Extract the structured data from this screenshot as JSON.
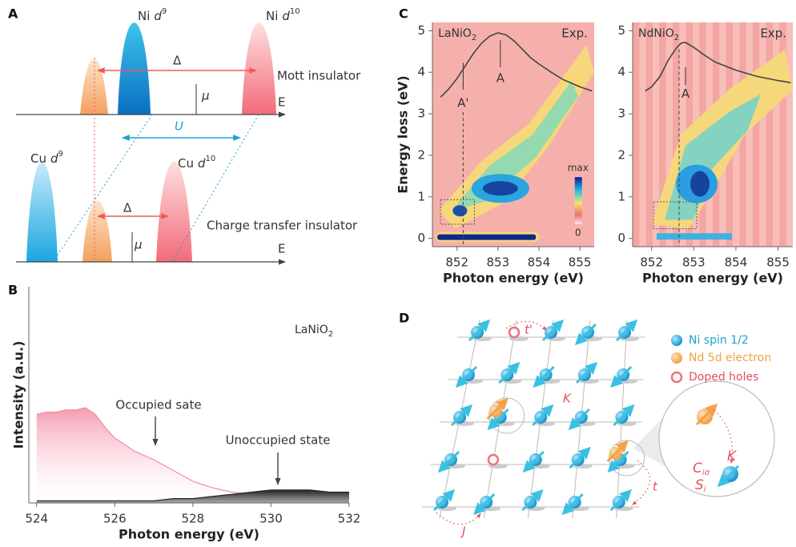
{
  "panel_a": {
    "label": "A",
    "ni_d9": {
      "name": "Ni",
      "orbital": "d",
      "exponent": "9"
    },
    "ni_d10": {
      "name": "Ni",
      "orbital": "d",
      "exponent": "10"
    },
    "delta_top": "Δ",
    "mott": "Mott insulator",
    "mu_top": "μ",
    "e_top": "E",
    "u": "U",
    "cu_d9": {
      "name": "Cu",
      "orbital": "d",
      "exponent": "9"
    },
    "cu_d10": {
      "name": "Cu",
      "orbital": "d",
      "exponent": "10"
    },
    "delta_bottom": "Δ",
    "charge_transfer": "Charge transfer insulator",
    "mu_bottom": "μ",
    "e_bottom": "E"
  },
  "chart_data": [
    {
      "type": "line",
      "panel_label": "B",
      "title": {
        "text": "LaNiO",
        "sub": "2"
      },
      "xlabel": "Photon energy (eV)",
      "ylabel": "Intensity (a.u.)",
      "x": [
        524,
        524.25,
        524.5,
        524.75,
        525,
        525.25,
        525.5,
        525.75,
        526,
        526.5,
        527,
        527.5,
        528,
        528.5,
        529,
        529.5,
        530,
        530.5,
        531,
        531.5,
        532
      ],
      "series": [
        {
          "color": "#f28ca5",
          "values": [
            0.41,
            0.42,
            0.42,
            0.43,
            0.43,
            0.44,
            0.41,
            0.35,
            0.3,
            0.24,
            0.2,
            0.15,
            0.1,
            0.07,
            0.05,
            0.04,
            0.04,
            0.04,
            0.04,
            0.04,
            0.04
          ]
        },
        {
          "color": "#222222",
          "values": [
            0.01,
            0.01,
            0.01,
            0.01,
            0.01,
            0.01,
            0.01,
            0.01,
            0.01,
            0.01,
            0.01,
            0.02,
            0.02,
            0.03,
            0.04,
            0.05,
            0.06,
            0.06,
            0.06,
            0.05,
            0.05
          ]
        }
      ],
      "annotations": [
        "Occupied sate",
        "Unoccupied state"
      ],
      "xlim": [
        523.8,
        532
      ],
      "ylim": [
        0,
        1
      ],
      "xticks": [
        524,
        526,
        528,
        530,
        532
      ]
    },
    {
      "type": "line",
      "panel_label": "C",
      "title": {
        "text": "LaNiO",
        "sub": "2"
      },
      "mode": "Exp.",
      "xlabel": "Photon energy (eV)",
      "ylabel": "Energy loss (eV)",
      "x": [
        851.6,
        851.8,
        852,
        852.2,
        852.4,
        852.6,
        852.8,
        853,
        853.2,
        853.4,
        853.6,
        853.8,
        854,
        854.3,
        854.6,
        855,
        855.3
      ],
      "series": [
        {
          "color": "#444444",
          "values": [
            3.4,
            3.6,
            3.85,
            4.15,
            4.45,
            4.7,
            4.87,
            4.95,
            4.9,
            4.75,
            4.55,
            4.35,
            4.2,
            4.0,
            3.82,
            3.65,
            3.55
          ]
        }
      ],
      "annotations": [
        "A'",
        "A"
      ],
      "colorbar": [
        "max",
        "0"
      ],
      "xlim": [
        851.4,
        855.35
      ],
      "ylim": [
        -0.2,
        5.2
      ],
      "xticks": [
        852,
        853,
        854,
        855
      ],
      "yticks": [
        0,
        1,
        2,
        3,
        4,
        5
      ]
    },
    {
      "type": "line",
      "title": {
        "text": "NdNiO",
        "sub": "2"
      },
      "mode": "Exp.",
      "xlabel": "Photon energy (eV)",
      "x": [
        851.85,
        852,
        852.2,
        852.4,
        852.6,
        852.7,
        852.8,
        853,
        853.2,
        853.5,
        854,
        854.5,
        855,
        855.3
      ],
      "series": [
        {
          "color": "#444444",
          "values": [
            3.55,
            3.65,
            3.9,
            4.3,
            4.6,
            4.7,
            4.72,
            4.6,
            4.45,
            4.25,
            4.05,
            3.9,
            3.8,
            3.75
          ]
        }
      ],
      "annotations": [
        "A"
      ],
      "xlim": [
        851.55,
        855.35
      ],
      "ylim": [
        -0.2,
        5.2
      ],
      "xticks": [
        852,
        853,
        854,
        855
      ],
      "yticks": [
        0,
        1,
        2,
        3,
        4,
        5
      ]
    }
  ],
  "panel_d": {
    "label": "D",
    "t_prime": "t'",
    "k_lattice": "K",
    "legend": [
      "Ni spin 1/2",
      "Nd 5d electron",
      "Doped holes"
    ],
    "c": {
      "text": "C",
      "sub": "iσ"
    },
    "k_inset": "K",
    "s": {
      "text": "S",
      "sub": "i"
    },
    "t": "t",
    "j": "J"
  }
}
